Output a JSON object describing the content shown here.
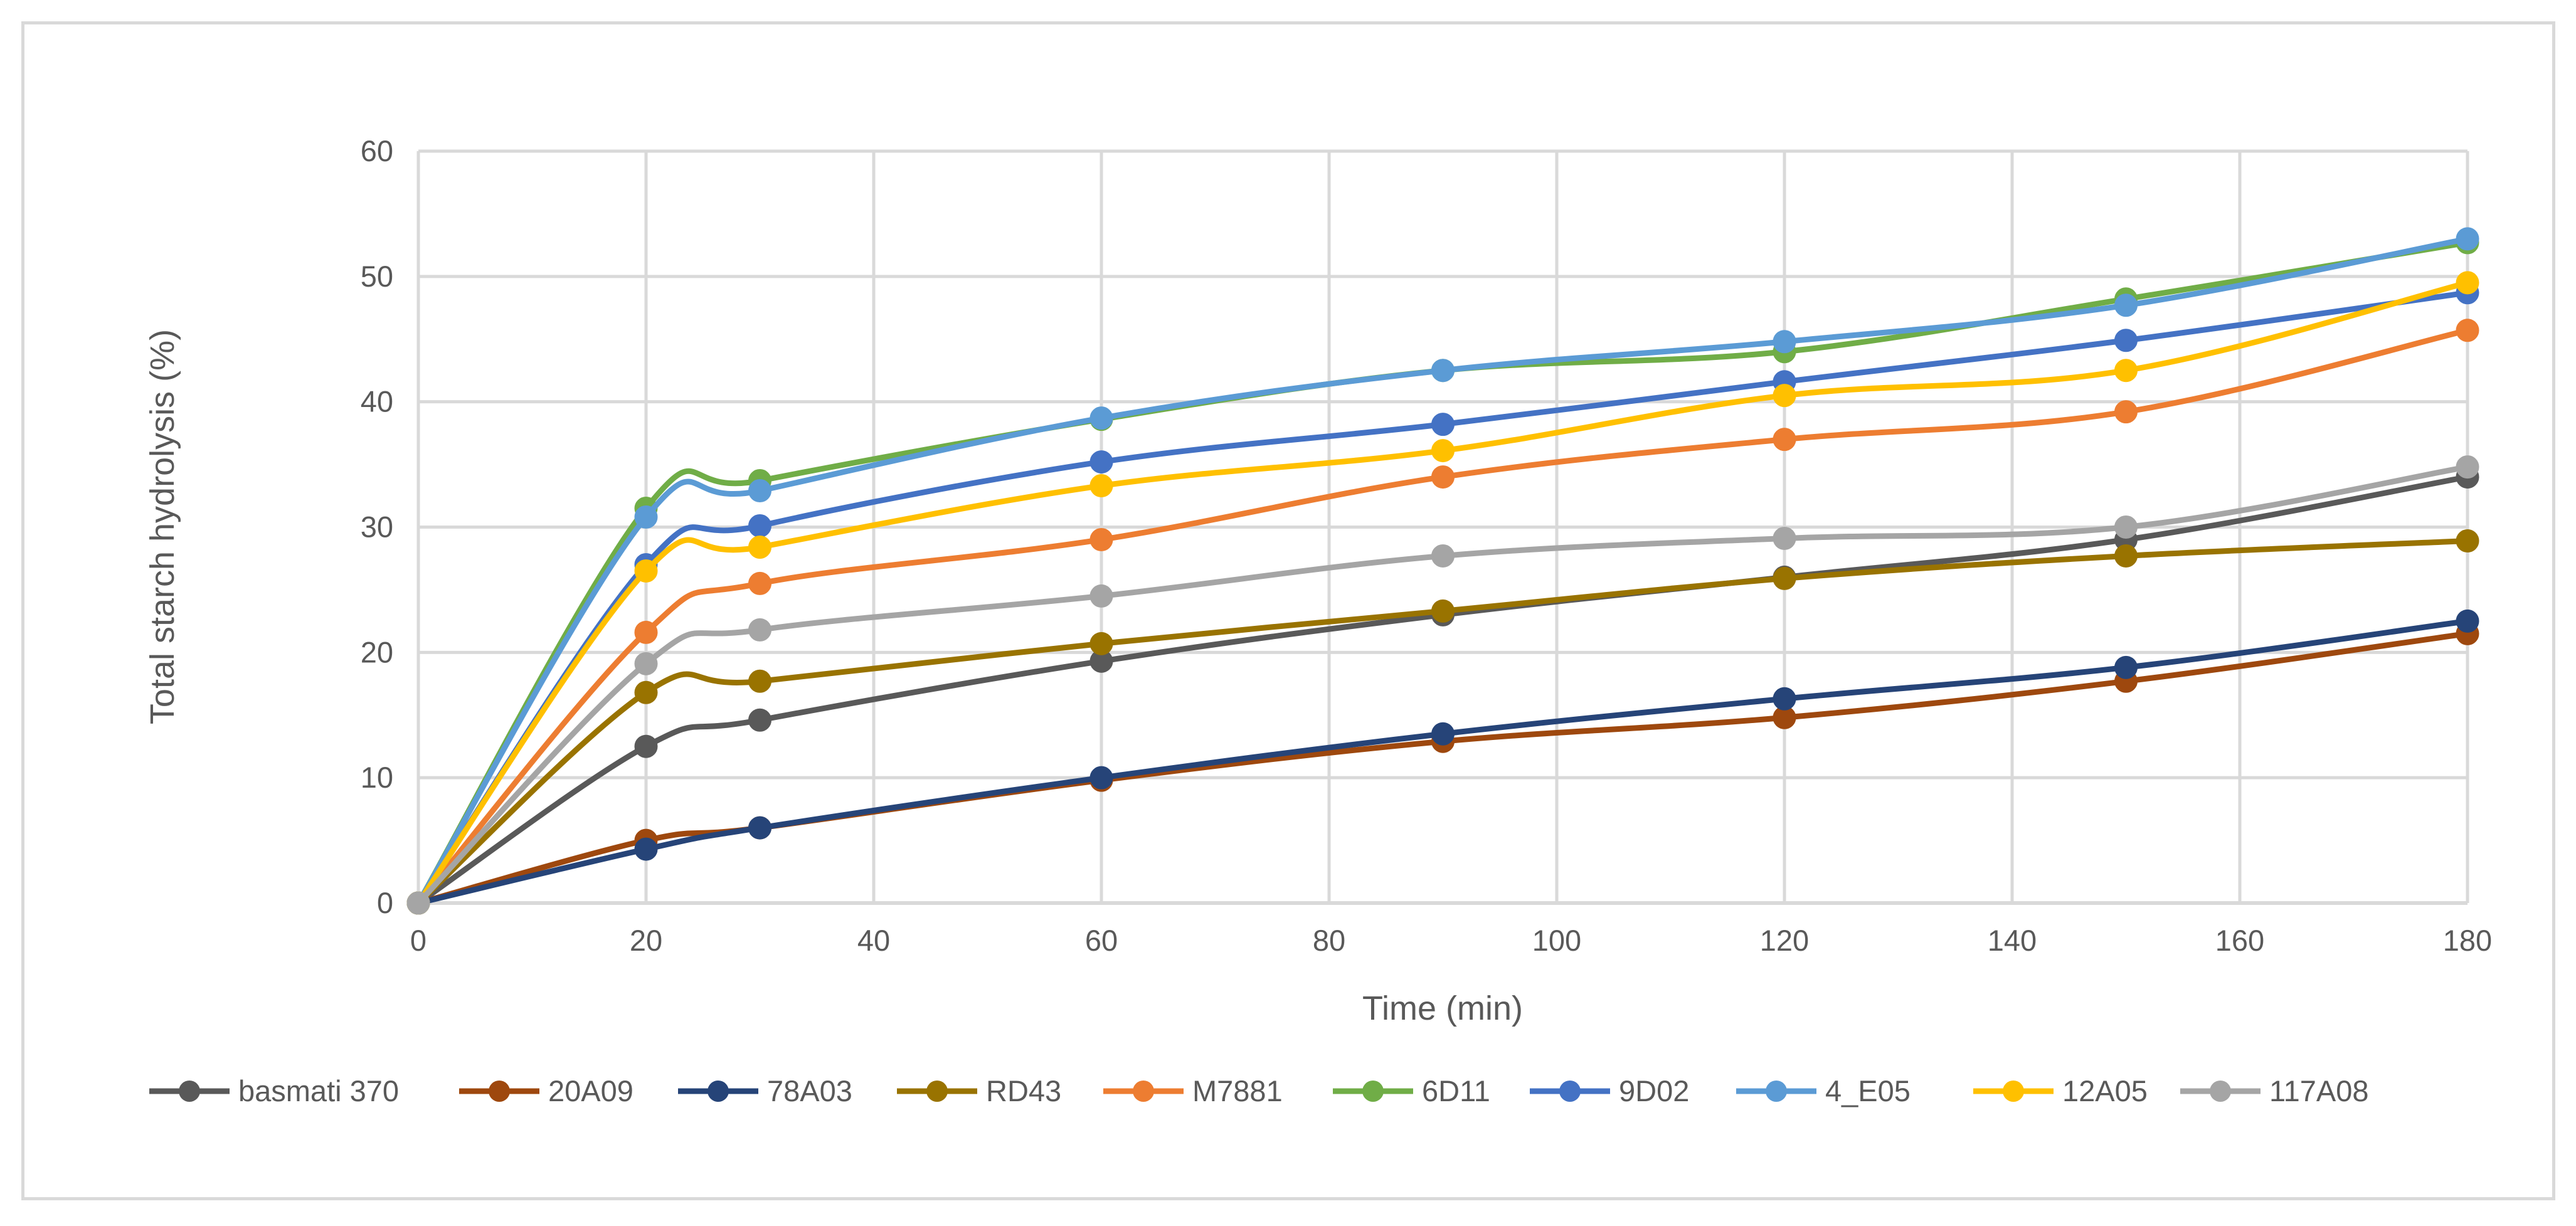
{
  "chart_data": {
    "type": "line",
    "title": "",
    "xlabel": "Time (min)",
    "ylabel": "Total starch hydrolysis (%)",
    "xlim": [
      0,
      180
    ],
    "ylim": [
      0,
      60
    ],
    "xticks": [
      0,
      20,
      40,
      60,
      80,
      100,
      120,
      140,
      160,
      180
    ],
    "yticks": [
      0,
      10,
      20,
      30,
      40,
      50,
      60
    ],
    "grid": true,
    "smooth": true,
    "legend_position": "bottom",
    "x": [
      0,
      20,
      30,
      60,
      90,
      120,
      150,
      180
    ],
    "series": [
      {
        "name": "basmati 370",
        "color": "#595959",
        "values": [
          0,
          12.5,
          14.6,
          19.3,
          23.0,
          26.0,
          29.0,
          34.0
        ]
      },
      {
        "name": "20A09",
        "color": "#9e480e",
        "values": [
          0,
          5.0,
          6.0,
          9.8,
          12.9,
          14.8,
          17.7,
          21.5
        ]
      },
      {
        "name": "78A03",
        "color": "#264478",
        "values": [
          0,
          4.3,
          6.0,
          10.0,
          13.5,
          16.3,
          18.8,
          22.5
        ]
      },
      {
        "name": "RD43",
        "color": "#997300",
        "values": [
          0,
          16.8,
          17.7,
          20.7,
          23.3,
          25.9,
          27.7,
          28.9
        ]
      },
      {
        "name": "M7881",
        "color": "#ed7d31",
        "values": [
          0,
          21.6,
          25.5,
          29.0,
          34.0,
          37.0,
          39.2,
          45.7
        ]
      },
      {
        "name": "6D11",
        "color": "#70ad47",
        "values": [
          0,
          31.5,
          33.7,
          38.6,
          42.5,
          44.0,
          48.2,
          52.7
        ]
      },
      {
        "name": "9D02",
        "color": "#4472c4",
        "values": [
          0,
          27.0,
          30.1,
          35.2,
          38.2,
          41.6,
          44.9,
          48.7
        ]
      },
      {
        "name": "4_E05",
        "color": "#5b9bd5",
        "values": [
          0,
          30.8,
          32.9,
          38.7,
          42.5,
          44.8,
          47.7,
          53.0
        ]
      },
      {
        "name": "12A05",
        "color": "#ffc000",
        "values": [
          0,
          26.5,
          28.4,
          33.3,
          36.1,
          40.5,
          42.5,
          49.5
        ]
      },
      {
        "name": "117A08",
        "color": "#a5a5a5",
        "values": [
          0,
          19.1,
          21.8,
          24.5,
          27.7,
          29.1,
          30.0,
          34.8
        ]
      }
    ]
  },
  "colors": {
    "grid": "#d9d9d9",
    "text": "#595959",
    "border": "#d9d9d9"
  }
}
